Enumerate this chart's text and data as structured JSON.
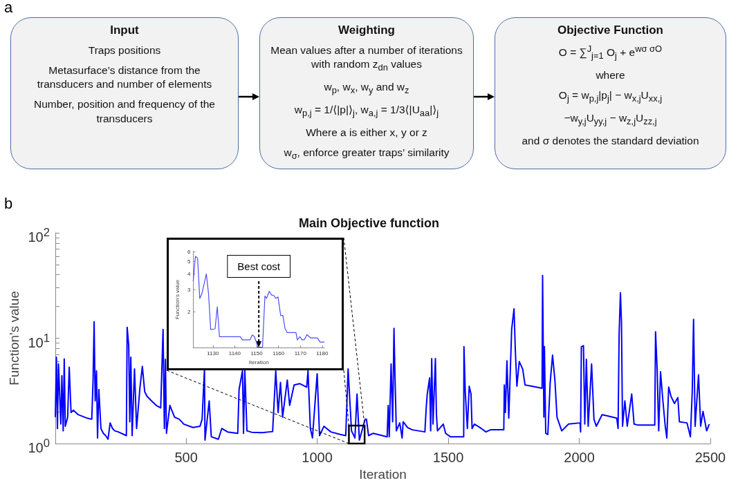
{
  "chart_data": [
    {
      "type": "other",
      "title": "Input",
      "annotations": [
        "a",
        "Traps positions",
        "Metasurface’s distance from the transducers and number of elements",
        "Number, position and frequency of the transducers"
      ]
    },
    {
      "type": "other",
      "title": "Weighting",
      "annotations": [
        "Mean values after a number of iterations with random z$_{dn}$ values",
        "w$_{p}$, w$_{x}$, w$_{y}$ and w$_{z}$",
        "w$_{p,j}$ = 1/⟨|p|⟩$_{j}$, w$_{a,j}$ = 1/3⟨|U$_{aa}$|⟩$_{j}$",
        "Where a is either x, y or z",
        "w$_{σ}$, enforce greater traps’ similarity"
      ]
    },
    {
      "type": "other",
      "title": "Objective Function",
      "annotations": [
        "O = ∑$^{J}$$_{j=1}$ O$_{j}$ + e$^{wσ σO}$",
        "where",
        "O$_{j}$ = w$_{p,j}$|p$_{j}$| − w$_{x,j}$U$_{xx,j}$",
        "−w$_{y,j}$U$_{yy,j}$ − w$_{z,j}$U$_{zz,j}$",
        "and σ denotes the standard deviation"
      ]
    },
    {
      "type": "line",
      "title": "Main Objective function",
      "xlabel": "Iteration",
      "ylabel": "Function's value",
      "annotations": [
        "b"
      ],
      "color": "#0000ff",
      "log": "y",
      "xlim": [
        1,
        2500
      ],
      "xticks": [
        500,
        1000,
        1500,
        2000,
        2500
      ],
      "ylim": [
        1,
        100
      ],
      "yticks": [
        {
          "value": 1,
          "label": "10$^{0}$"
        },
        {
          "value": 2,
          "label": null
        },
        {
          "value": 3,
          "label": null
        },
        {
          "value": 4,
          "label": null
        },
        {
          "value": 5,
          "label": null
        },
        {
          "value": 6,
          "label": null
        },
        {
          "value": 7,
          "label": null
        },
        {
          "value": 8,
          "label": null
        },
        {
          "value": 9,
          "label": null
        },
        {
          "value": 10,
          "label": "10$^{1}$"
        },
        {
          "value": 20,
          "label": null
        },
        {
          "value": 30,
          "label": null
        },
        {
          "value": 40,
          "label": null
        },
        {
          "value": 50,
          "label": null
        },
        {
          "value": 60,
          "label": null
        },
        {
          "value": 70,
          "label": null
        },
        {
          "value": 80,
          "label": null
        },
        {
          "value": 90,
          "label": null
        },
        {
          "value": 100,
          "label": "10$^{2}$"
        }
      ],
      "x": [
        1,
        5,
        9,
        13,
        22,
        26,
        31,
        35,
        39,
        48,
        54,
        61,
        70,
        88,
        123,
        140,
        145,
        149,
        153,
        158,
        162,
        167,
        175,
        184,
        193,
        202,
        210,
        219,
        228,
        241,
        272,
        275,
        281,
        285,
        289,
        294,
        303,
        311,
        324,
        333,
        342,
        351,
        368,
        386,
        403,
        412,
        417,
        421,
        425,
        438,
        456,
        474,
        491,
        526,
        553,
        561,
        570,
        572,
        588,
        596,
        623,
        636,
        658,
        697,
        702,
        715,
        719,
        724,
        732,
        750,
        790,
        830,
        842,
        851,
        860,
        868,
        886,
        895,
        912,
        934,
        960,
        965,
        974,
        982,
        1000,
        1009,
        1026,
        1052,
        1087,
        1109,
        1118,
        1131,
        1144,
        1152,
        1161,
        1183,
        1188,
        1196,
        1214,
        1267,
        1271,
        1275,
        1282,
        1288,
        1293,
        1297,
        1302,
        1315,
        1324,
        1328,
        1345,
        1363,
        1411,
        1416,
        1420,
        1429,
        1433,
        1437,
        1442,
        1451,
        1455,
        1459,
        1481,
        1490,
        1508,
        1559,
        1560,
        1565,
        1573,
        1580,
        1587,
        1591,
        1600,
        1613,
        1626,
        1644,
        1661,
        1712,
        1714,
        1718,
        1724,
        1731,
        1742,
        1751,
        1756,
        1762,
        1771,
        1784,
        1793,
        1819,
        1858,
        1860,
        1865,
        1867,
        1872,
        1880,
        1889,
        1898,
        1907,
        1915,
        1933,
        1959,
        2003,
        2005,
        2008,
        2016,
        2021,
        2027,
        2034,
        2047,
        2056,
        2065,
        2087,
        2108,
        2143,
        2148,
        2152,
        2157,
        2161,
        2165,
        2174,
        2183,
        2200,
        2209,
        2222,
        2288,
        2291,
        2297,
        2303,
        2310,
        2319,
        2328,
        2334,
        2341,
        2350,
        2363,
        2376,
        2382,
        2411,
        2424,
        2431,
        2436,
        2442,
        2455,
        2463,
        2472,
        2486,
        2496
      ],
      "values": [
        1.78,
        6.6,
        1.39,
        5.7,
        1.53,
        4.4,
        1.32,
        6.35,
        1.46,
        1.78,
        5.3,
        1.97,
        2.07,
        1.88,
        1.74,
        1.7,
        4.0,
        14.3,
        2.54,
        4.9,
        1.13,
        3.26,
        1.39,
        1.25,
        1.19,
        1.1,
        1.57,
        1.39,
        1.32,
        1.29,
        1.19,
        12.7,
        8.5,
        1.61,
        6.6,
        1.19,
        5.1,
        1.39,
        3.43,
        5.4,
        3.1,
        2.8,
        2.54,
        2.3,
        2.18,
        12.1,
        1.39,
        6.3,
        1.25,
        2.3,
        1.78,
        1.7,
        1.53,
        1.42,
        1.46,
        1.7,
        5.1,
        1.08,
        2.54,
        1.16,
        1.1,
        1.39,
        1.29,
        1.25,
        3.26,
        4.9,
        1.25,
        4.9,
        1.32,
        1.28,
        1.27,
        1.3,
        4.9,
        1.97,
        3.8,
        1.78,
        4.0,
        2.3,
        3.6,
        3.7,
        3.43,
        4.9,
        1.39,
        1.13,
        4.6,
        1.19,
        1.46,
        1.29,
        1.22,
        1.19,
        5.1,
        1.32,
        1.13,
        2.95,
        1.08,
        1.7,
        1.7,
        1.19,
        1.25,
        1.16,
        2.3,
        1.16,
        5.7,
        1.61,
        12.4,
        4.2,
        1.32,
        1.57,
        1.13,
        1.61,
        1.42,
        1.35,
        1.29,
        2.18,
        2.95,
        4.2,
        1.32,
        6.4,
        1.53,
        6.4,
        1.88,
        1.32,
        1.53,
        1.25,
        1.16,
        1.16,
        8.3,
        3.1,
        1.39,
        3.5,
        2.95,
        1.39,
        1.53,
        1.46,
        1.39,
        1.29,
        1.35,
        1.35,
        3.6,
        1.97,
        6.1,
        1.74,
        12.1,
        19.0,
        7.7,
        3.5,
        6.0,
        5.1,
        3.6,
        3.5,
        3.35,
        39.4,
        1.78,
        8.3,
        1.25,
        1.22,
        3.8,
        6.9,
        4.0,
        1.78,
        1.32,
        1.53,
        1.57,
        1.29,
        8.3,
        8.5,
        1.53,
        6.3,
        1.46,
        5.7,
        1.7,
        1.46,
        1.88,
        1.83,
        1.74,
        1.39,
        10.9,
        27,
        14.0,
        1.46,
        2.54,
        1.46,
        2.95,
        1.53,
        1.5,
        1.5,
        11.5,
        5.1,
        1.32,
        4.8,
        2.54,
        1.46,
        1.13,
        3.43,
        2.8,
        2.4,
        2.73,
        1.61,
        1.57,
        1.16,
        3.1,
        15.1,
        1.46,
        4.5,
        1.46,
        2.02,
        1.32,
        1.53
      ]
    },
    {
      "type": "line",
      "xlabel": "Iteration",
      "ylabel": "Function's value",
      "annotations": [
        {
          "text": "Best cost",
          "x": 1151,
          "y": 1.055
        }
      ],
      "color": "#4d4dff",
      "log": "y",
      "xlim": [
        1121,
        1181
      ],
      "xticks": [
        1130,
        1140,
        1150,
        1160,
        1170,
        1180
      ],
      "ylim": [
        1.05,
        6
      ],
      "yticks": [
        2,
        3,
        4,
        5,
        6
      ],
      "x": [
        1121,
        1122,
        1123,
        1124,
        1125,
        1127,
        1128,
        1129,
        1130.6,
        1131,
        1132,
        1133,
        1142.5,
        1143.5,
        1147,
        1148,
        1149,
        1150,
        1150.5,
        1152.7,
        1153.8,
        1154.5,
        1155.8,
        1156.8,
        1157.8,
        1158.8,
        1159.8,
        1161,
        1162,
        1163,
        1164,
        1168,
        1168.6,
        1169.8,
        1170.8,
        1171.8,
        1173,
        1174.8,
        1177.8,
        1179,
        1181
      ],
      "values": [
        3.5,
        5.5,
        5.3,
        2.56,
        2.8,
        4.0,
        2.8,
        1.46,
        1.47,
        1.48,
        2.2,
        1.28,
        1.28,
        1.21,
        1.21,
        1.32,
        1.28,
        1.14,
        1.055,
        1.055,
        2.68,
        2.56,
        2.92,
        2.73,
        2.7,
        2.56,
        2.63,
        1.88,
        1.88,
        1.48,
        1.38,
        1.38,
        1.21,
        1.28,
        1.21,
        1.21,
        1.33,
        1.25,
        1.25,
        1.16,
        1.16
      ]
    }
  ]
}
